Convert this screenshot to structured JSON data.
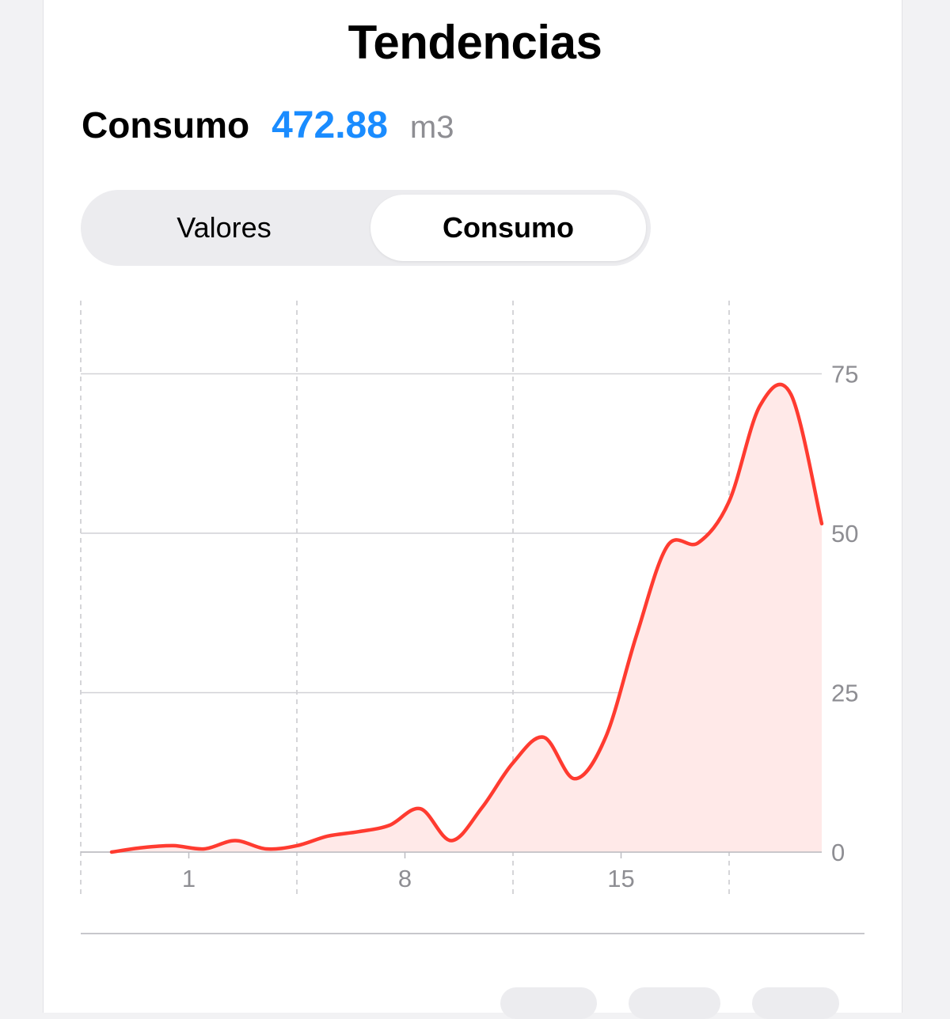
{
  "title": "Tendencias",
  "summary": {
    "label": "Consumo",
    "value": "472.88",
    "unit": "m3"
  },
  "segmented_control": {
    "options": [
      "Valores",
      "Consumo"
    ],
    "selected": "Consumo"
  },
  "colors": {
    "line": "#ff3b30",
    "fill": "#ffe9e8",
    "value_accent": "#1a8cff",
    "grid": "#d1d1d6"
  },
  "chart_data": {
    "type": "area",
    "title": "",
    "xlabel": "",
    "ylabel": "",
    "x": [
      -1.5,
      -0.5,
      0.5,
      1.5,
      2.5,
      3.5,
      4.5,
      5.5,
      6.5,
      7.5,
      8.5,
      9.5,
      10.5,
      11.5,
      12.5,
      13.5,
      14.5,
      15.5,
      16.5,
      17.5,
      18.5,
      19.5,
      20.5,
      21.5
    ],
    "y": [
      0,
      0.7,
      1.0,
      0.5,
      1.8,
      0.5,
      1.0,
      2.5,
      3.2,
      4.2,
      6.8,
      1.8,
      7.0,
      14.0,
      18.0,
      11.5,
      18.0,
      34.0,
      48.0,
      48.5,
      55.0,
      70.0,
      71.8,
      51.5
    ],
    "xticks": [
      1,
      8,
      15
    ],
    "xtick_labels": [
      "1",
      "8",
      "15"
    ],
    "x_gridlines": [
      -2.5,
      4.5,
      11.5,
      18.5
    ],
    "yticks": [
      0,
      25,
      50,
      75
    ],
    "ytick_labels": [
      "0",
      "25",
      "50",
      "75"
    ],
    "xlim": [
      -2.5,
      22
    ],
    "ylim": [
      0,
      88
    ],
    "y_axis_side": "right",
    "grid": true
  }
}
